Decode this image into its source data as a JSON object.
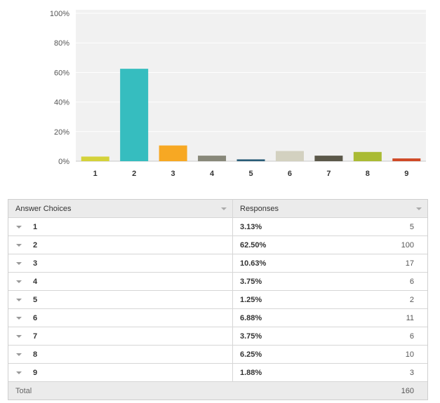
{
  "chart_data": {
    "type": "bar",
    "categories": [
      "1",
      "2",
      "3",
      "4",
      "5",
      "6",
      "7",
      "8",
      "9"
    ],
    "values": [
      3.13,
      62.5,
      10.63,
      3.75,
      1.25,
      6.88,
      3.75,
      6.25,
      1.88
    ],
    "colors": [
      "#d4d23a",
      "#36bdbf",
      "#f7a823",
      "#88887a",
      "#2a5d78",
      "#d3d1c0",
      "#5b5849",
      "#aabb34",
      "#cf4a27"
    ],
    "y_ticks": [
      "0%",
      "20%",
      "40%",
      "60%",
      "80%",
      "100%"
    ],
    "ylim": [
      0,
      100
    ],
    "grid": true,
    "xlabel": "",
    "ylabel": ""
  },
  "table": {
    "headers": {
      "choices": "Answer Choices",
      "responses": "Responses"
    },
    "rows": [
      {
        "choice": "1",
        "percent": "3.13%",
        "count": "5"
      },
      {
        "choice": "2",
        "percent": "62.50%",
        "count": "100"
      },
      {
        "choice": "3",
        "percent": "10.63%",
        "count": "17"
      },
      {
        "choice": "4",
        "percent": "3.75%",
        "count": "6"
      },
      {
        "choice": "5",
        "percent": "1.25%",
        "count": "2"
      },
      {
        "choice": "6",
        "percent": "6.88%",
        "count": "11"
      },
      {
        "choice": "7",
        "percent": "3.75%",
        "count": "6"
      },
      {
        "choice": "8",
        "percent": "6.25%",
        "count": "10"
      },
      {
        "choice": "9",
        "percent": "1.88%",
        "count": "3"
      }
    ],
    "total_label": "Total",
    "total_value": "160"
  }
}
